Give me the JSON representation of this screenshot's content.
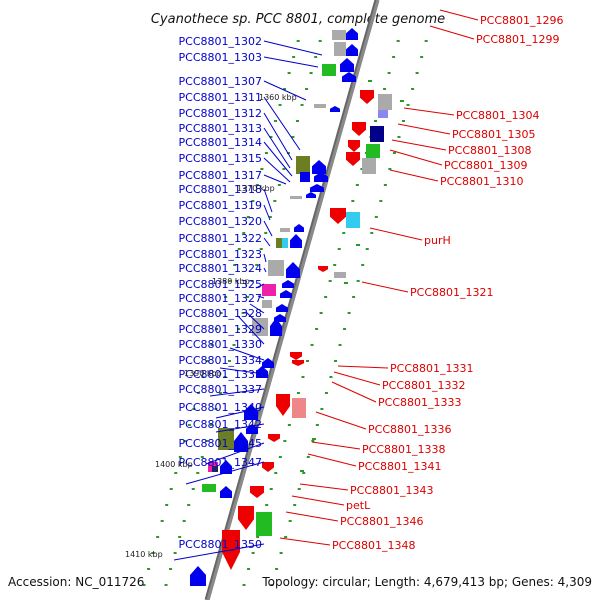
{
  "title": "Cyanothece sp. PCC 8801, complete genome",
  "footer": {
    "accession": "Accession: NC_011726",
    "topology": "Topology: circular; Length: 4,679,413 bp; Genes: 4,309"
  },
  "colors": {
    "left_strand_label": "#0000cc",
    "right_strand_label": "#dd0000",
    "backbone": "#8a8a8a",
    "blue": "#0000ee",
    "red": "#ee0000",
    "green": "#22bb22",
    "olive": "#6b7f22",
    "cyan": "#33ccee",
    "magenta": "#ee22aa",
    "gray": "#aaaaaa"
  },
  "kbp_marks": [
    "1360 kbp",
    "1370 kbp",
    "1380 kbp",
    "1390 kbp",
    "1400 kbp",
    "1410 kbp"
  ],
  "left_labels": [
    "PCC8801_1302",
    "PCC8801_1303",
    "PCC8801_1307",
    "PCC8801_1311",
    "PCC8801_1312",
    "PCC8801_1313",
    "PCC8801_1314",
    "PCC8801_1315",
    "PCC8801_1317",
    "PCC8801_1318",
    "PCC8801_1319",
    "PCC8801_1320",
    "PCC8801_1322",
    "PCC8801_1323",
    "PCC8801_1324",
    "PCC8801_1325",
    "PCC8801_1327",
    "PCC8801_1328",
    "PCC8801_1329",
    "PCC8801_1330",
    "PCC8801_1334",
    "PCC8801_1335",
    "PCC8801_1337",
    "PCC8801_1340",
    "PCC8801_1342",
    "PCC8801_1345",
    "PCC8801_1347",
    "PCC8801_1350"
  ],
  "right_labels": [
    "PCC8801_1296",
    "PCC8801_1299",
    "PCC8801_1304",
    "PCC8801_1305",
    "PCC8801_1308",
    "PCC8801_1309",
    "PCC8801_1310",
    "purH",
    "PCC8801_1321",
    "PCC8801_1331",
    "PCC8801_1332",
    "PCC8801_1333",
    "PCC8801_1336",
    "PCC8801_1338",
    "PCC8801_1341",
    "PCC8801_1343",
    "petL",
    "PCC8801_1346",
    "PCC8801_1348"
  ]
}
